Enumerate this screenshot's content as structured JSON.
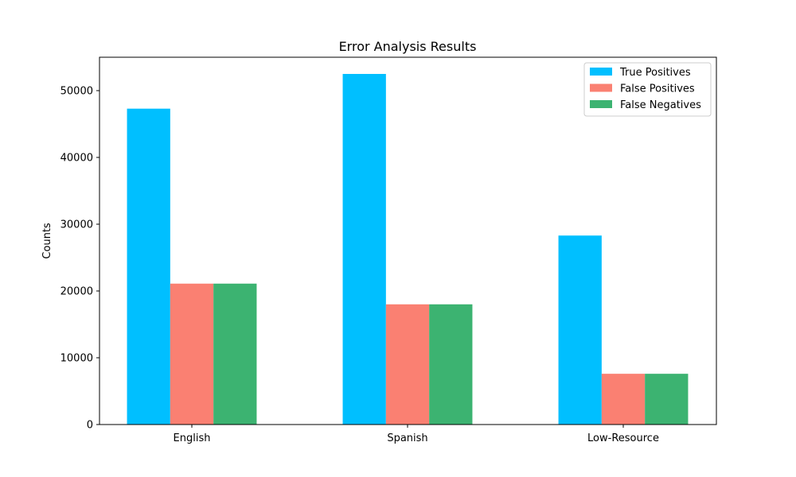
{
  "chart_data": {
    "type": "bar",
    "title": "Error Analysis Results",
    "xlabel": "",
    "ylabel": "Counts",
    "categories": [
      "English",
      "Spanish",
      "Low-Resource"
    ],
    "series": [
      {
        "name": "True Positives",
        "values": [
          47300,
          52500,
          28300
        ],
        "color": "#00bfff"
      },
      {
        "name": "False Positives",
        "values": [
          21100,
          18000,
          7600
        ],
        "color": "#fa8072"
      },
      {
        "name": "False Negatives",
        "values": [
          21100,
          18000,
          7600
        ],
        "color": "#3cb371"
      }
    ],
    "ylim": [
      0,
      55000
    ],
    "yticks": [
      0,
      10000,
      20000,
      30000,
      40000,
      50000
    ],
    "ytick_labels": [
      "0",
      "10000",
      "20000",
      "30000",
      "40000",
      "50000"
    ],
    "grid": false,
    "legend_position": "top-right"
  }
}
